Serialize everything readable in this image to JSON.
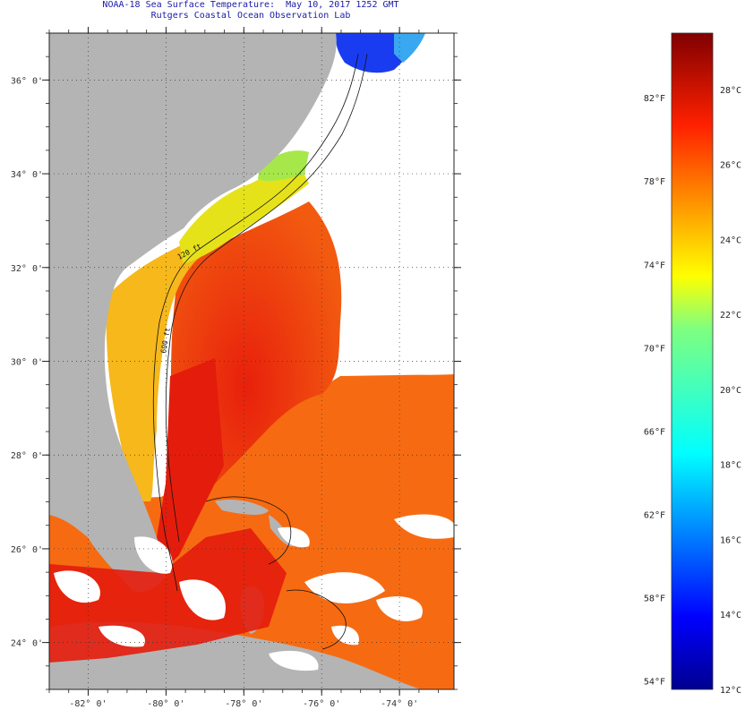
{
  "title": {
    "line1": "NOAA-18 Sea Surface Temperature:  May 10, 2017 1252 GMT",
    "line2": "Rutgers Coastal Ocean Observation Lab"
  },
  "map": {
    "lon_range": [
      -83.0,
      -72.6
    ],
    "lat_range": [
      23.0,
      37.0
    ],
    "lon_ticks": [
      {
        "value": -82,
        "label": "-82° 0'"
      },
      {
        "value": -80,
        "label": "-80° 0'"
      },
      {
        "value": -78,
        "label": "-78° 0'"
      },
      {
        "value": -76,
        "label": "-76° 0'"
      },
      {
        "value": -74,
        "label": "-74° 0'"
      }
    ],
    "lat_ticks": [
      {
        "value": 36,
        "label": "36° 0'"
      },
      {
        "value": 34,
        "label": "34° 0'"
      },
      {
        "value": 32,
        "label": "32° 0'"
      },
      {
        "value": 30,
        "label": "30° 0'"
      },
      {
        "value": 28,
        "label": "28° 0'"
      },
      {
        "value": 26,
        "label": "26° 0'"
      },
      {
        "value": 24,
        "label": "24° 0'"
      }
    ],
    "contour_labels": [
      "120 ft",
      "600 ft"
    ],
    "land_color": "#b4b4b4",
    "cloud_color": "#ffffff"
  },
  "colorbar": {
    "min_c": 12,
    "max_c": 29.5,
    "colormap": "jet",
    "fahrenheit_labels": [
      {
        "value": 82,
        "label": "82°F"
      },
      {
        "value": 78,
        "label": "78°F"
      },
      {
        "value": 74,
        "label": "74°F"
      },
      {
        "value": 70,
        "label": "70°F"
      },
      {
        "value": 66,
        "label": "66°F"
      },
      {
        "value": 62,
        "label": "62°F"
      },
      {
        "value": 58,
        "label": "58°F"
      },
      {
        "value": 54,
        "label": "54°F"
      }
    ],
    "celsius_labels": [
      {
        "value": 28,
        "label": "28°C"
      },
      {
        "value": 26,
        "label": "26°C"
      },
      {
        "value": 24,
        "label": "24°C"
      },
      {
        "value": 22,
        "label": "22°C"
      },
      {
        "value": 20,
        "label": "20°C"
      },
      {
        "value": 18,
        "label": "18°C"
      },
      {
        "value": 16,
        "label": "16°C"
      },
      {
        "value": 14,
        "label": "14°C"
      },
      {
        "value": 12,
        "label": "12°C"
      }
    ]
  }
}
